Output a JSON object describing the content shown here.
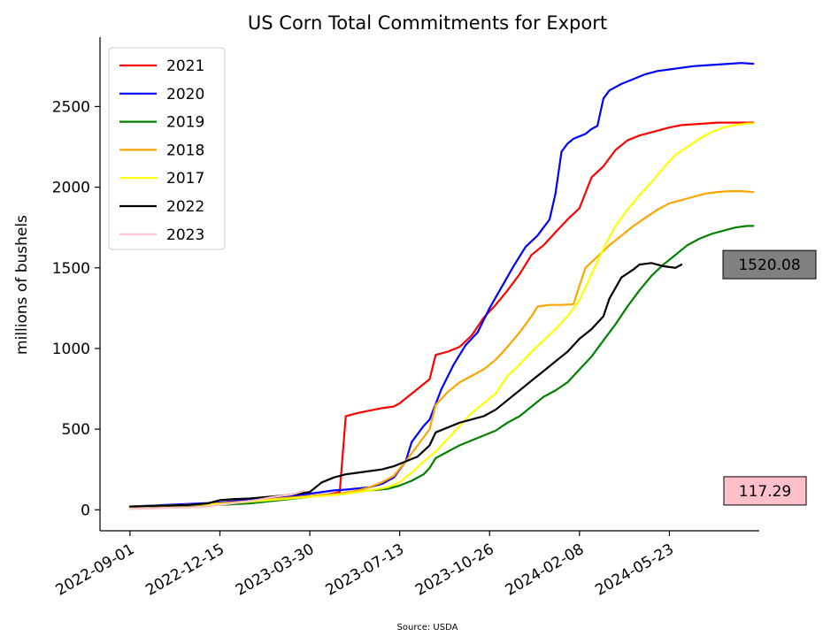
{
  "chart_data": {
    "type": "line",
    "title": "US Corn Total Commitments for Export",
    "xlabel": "",
    "ylabel": "millions of bushels",
    "source": "Source: USDA",
    "x_tick_labels": [
      "2022-09-01",
      "2022-12-15",
      "2023-03-30",
      "2023-07-13",
      "2023-10-26",
      "2024-02-08",
      "2024-05-23"
    ],
    "x_tick_weeks": [
      0,
      15,
      30,
      45,
      60,
      75,
      90
    ],
    "xlim_weeks": [
      -5,
      105
    ],
    "ylim": [
      -130,
      2930
    ],
    "y_ticks": [
      0,
      500,
      1000,
      1500,
      2000,
      2500
    ],
    "grid": false,
    "legend_position": "top-left",
    "series": [
      {
        "name": "2021",
        "color": "#ff0000",
        "points": [
          [
            0,
            20
          ],
          [
            10,
            25
          ],
          [
            15,
            35
          ],
          [
            20,
            55
          ],
          [
            25,
            75
          ],
          [
            30,
            85
          ],
          [
            33,
            95
          ],
          [
            35,
            110
          ],
          [
            36,
            580
          ],
          [
            37,
            590
          ],
          [
            38,
            600
          ],
          [
            40,
            615
          ],
          [
            42,
            630
          ],
          [
            44,
            640
          ],
          [
            45,
            660
          ],
          [
            47,
            720
          ],
          [
            49,
            780
          ],
          [
            50,
            810
          ],
          [
            51,
            960
          ],
          [
            53,
            980
          ],
          [
            55,
            1010
          ],
          [
            57,
            1080
          ],
          [
            59,
            1190
          ],
          [
            61,
            1270
          ],
          [
            63,
            1360
          ],
          [
            65,
            1460
          ],
          [
            67,
            1580
          ],
          [
            69,
            1640
          ],
          [
            71,
            1720
          ],
          [
            73,
            1800
          ],
          [
            75,
            1870
          ],
          [
            77,
            2060
          ],
          [
            79,
            2130
          ],
          [
            81,
            2230
          ],
          [
            83,
            2290
          ],
          [
            85,
            2320
          ],
          [
            87,
            2340
          ],
          [
            89,
            2360
          ],
          [
            90,
            2370
          ],
          [
            92,
            2385
          ],
          [
            94,
            2390
          ],
          [
            96,
            2395
          ],
          [
            98,
            2400
          ],
          [
            103,
            2400
          ],
          [
            104,
            2400
          ]
        ]
      },
      {
        "name": "2020",
        "color": "#0000ff",
        "points": [
          [
            0,
            20
          ],
          [
            15,
            45
          ],
          [
            25,
            80
          ],
          [
            30,
            100
          ],
          [
            34,
            120
          ],
          [
            36,
            125
          ],
          [
            40,
            140
          ],
          [
            42,
            160
          ],
          [
            44,
            200
          ],
          [
            46,
            300
          ],
          [
            47,
            420
          ],
          [
            49,
            520
          ],
          [
            50,
            560
          ],
          [
            52,
            750
          ],
          [
            54,
            900
          ],
          [
            56,
            1020
          ],
          [
            58,
            1100
          ],
          [
            60,
            1250
          ],
          [
            62,
            1380
          ],
          [
            64,
            1510
          ],
          [
            66,
            1630
          ],
          [
            68,
            1700
          ],
          [
            70,
            1800
          ],
          [
            71,
            1960
          ],
          [
            72,
            2220
          ],
          [
            73,
            2270
          ],
          [
            74,
            2300
          ],
          [
            76,
            2330
          ],
          [
            77,
            2360
          ],
          [
            78,
            2380
          ],
          [
            79,
            2550
          ],
          [
            80,
            2600
          ],
          [
            82,
            2640
          ],
          [
            84,
            2670
          ],
          [
            86,
            2700
          ],
          [
            88,
            2720
          ],
          [
            90,
            2730
          ],
          [
            92,
            2740
          ],
          [
            94,
            2750
          ],
          [
            96,
            2755
          ],
          [
            98,
            2760
          ],
          [
            100,
            2765
          ],
          [
            102,
            2770
          ],
          [
            104,
            2765
          ]
        ]
      },
      {
        "name": "2019",
        "color": "#008000",
        "points": [
          [
            0,
            20
          ],
          [
            10,
            25
          ],
          [
            15,
            30
          ],
          [
            20,
            40
          ],
          [
            25,
            60
          ],
          [
            30,
            80
          ],
          [
            35,
            100
          ],
          [
            40,
            120
          ],
          [
            43,
            130
          ],
          [
            45,
            150
          ],
          [
            47,
            180
          ],
          [
            49,
            220
          ],
          [
            50,
            260
          ],
          [
            51,
            320
          ],
          [
            53,
            360
          ],
          [
            55,
            400
          ],
          [
            57,
            430
          ],
          [
            59,
            460
          ],
          [
            61,
            490
          ],
          [
            63,
            540
          ],
          [
            65,
            580
          ],
          [
            67,
            640
          ],
          [
            69,
            700
          ],
          [
            71,
            740
          ],
          [
            73,
            790
          ],
          [
            75,
            870
          ],
          [
            77,
            950
          ],
          [
            79,
            1050
          ],
          [
            81,
            1150
          ],
          [
            83,
            1260
          ],
          [
            85,
            1360
          ],
          [
            87,
            1450
          ],
          [
            89,
            1520
          ],
          [
            91,
            1580
          ],
          [
            93,
            1640
          ],
          [
            95,
            1680
          ],
          [
            97,
            1710
          ],
          [
            99,
            1730
          ],
          [
            101,
            1750
          ],
          [
            103,
            1760
          ],
          [
            104,
            1760
          ]
        ]
      },
      {
        "name": "2018",
        "color": "#ffa500",
        "points": [
          [
            0,
            20
          ],
          [
            10,
            30
          ],
          [
            15,
            40
          ],
          [
            20,
            55
          ],
          [
            25,
            70
          ],
          [
            30,
            85
          ],
          [
            35,
            100
          ],
          [
            38,
            120
          ],
          [
            40,
            140
          ],
          [
            42,
            170
          ],
          [
            44,
            210
          ],
          [
            46,
            300
          ],
          [
            48,
            400
          ],
          [
            50,
            500
          ],
          [
            51,
            650
          ],
          [
            53,
            730
          ],
          [
            55,
            790
          ],
          [
            57,
            830
          ],
          [
            59,
            870
          ],
          [
            61,
            930
          ],
          [
            63,
            1010
          ],
          [
            65,
            1100
          ],
          [
            67,
            1200
          ],
          [
            68,
            1260
          ],
          [
            70,
            1270
          ],
          [
            72,
            1270
          ],
          [
            74,
            1275
          ],
          [
            75,
            1390
          ],
          [
            76,
            1500
          ],
          [
            78,
            1570
          ],
          [
            80,
            1640
          ],
          [
            82,
            1700
          ],
          [
            84,
            1760
          ],
          [
            86,
            1810
          ],
          [
            88,
            1860
          ],
          [
            90,
            1900
          ],
          [
            92,
            1920
          ],
          [
            94,
            1940
          ],
          [
            96,
            1960
          ],
          [
            98,
            1970
          ],
          [
            100,
            1975
          ],
          [
            102,
            1975
          ],
          [
            104,
            1970
          ]
        ]
      },
      {
        "name": "2017",
        "color": "#ffff00",
        "points": [
          [
            0,
            20
          ],
          [
            10,
            30
          ],
          [
            15,
            35
          ],
          [
            20,
            50
          ],
          [
            25,
            65
          ],
          [
            30,
            80
          ],
          [
            35,
            95
          ],
          [
            40,
            120
          ],
          [
            43,
            140
          ],
          [
            45,
            170
          ],
          [
            47,
            230
          ],
          [
            49,
            300
          ],
          [
            51,
            360
          ],
          [
            53,
            440
          ],
          [
            55,
            520
          ],
          [
            57,
            600
          ],
          [
            59,
            660
          ],
          [
            61,
            720
          ],
          [
            63,
            830
          ],
          [
            65,
            900
          ],
          [
            67,
            980
          ],
          [
            69,
            1050
          ],
          [
            71,
            1120
          ],
          [
            73,
            1200
          ],
          [
            75,
            1300
          ],
          [
            77,
            1460
          ],
          [
            79,
            1620
          ],
          [
            81,
            1760
          ],
          [
            83,
            1860
          ],
          [
            85,
            1950
          ],
          [
            87,
            2030
          ],
          [
            89,
            2120
          ],
          [
            91,
            2200
          ],
          [
            93,
            2250
          ],
          [
            95,
            2300
          ],
          [
            97,
            2340
          ],
          [
            99,
            2370
          ],
          [
            101,
            2385
          ],
          [
            103,
            2395
          ],
          [
            104,
            2395
          ]
        ]
      },
      {
        "name": "2022",
        "color": "#000000",
        "points": [
          [
            0,
            20
          ],
          [
            5,
            25
          ],
          [
            10,
            30
          ],
          [
            13,
            40
          ],
          [
            15,
            60
          ],
          [
            17,
            65
          ],
          [
            20,
            70
          ],
          [
            23,
            80
          ],
          [
            26,
            90
          ],
          [
            28,
            100
          ],
          [
            30,
            110
          ],
          [
            32,
            170
          ],
          [
            34,
            200
          ],
          [
            36,
            220
          ],
          [
            38,
            230
          ],
          [
            40,
            240
          ],
          [
            42,
            250
          ],
          [
            44,
            270
          ],
          [
            46,
            300
          ],
          [
            48,
            330
          ],
          [
            50,
            400
          ],
          [
            51,
            480
          ],
          [
            53,
            510
          ],
          [
            55,
            540
          ],
          [
            57,
            560
          ],
          [
            59,
            580
          ],
          [
            61,
            620
          ],
          [
            63,
            680
          ],
          [
            65,
            740
          ],
          [
            67,
            800
          ],
          [
            69,
            860
          ],
          [
            71,
            920
          ],
          [
            73,
            980
          ],
          [
            75,
            1060
          ],
          [
            77,
            1120
          ],
          [
            79,
            1200
          ],
          [
            80,
            1310
          ],
          [
            82,
            1440
          ],
          [
            84,
            1490
          ],
          [
            85,
            1520
          ],
          [
            87,
            1530
          ],
          [
            89,
            1510
          ],
          [
            91,
            1500
          ],
          [
            92,
            1520
          ]
        ]
      },
      {
        "name": "2023",
        "color": "#ffc0cb",
        "points": [
          [
            0,
            5
          ],
          [
            3,
            8
          ],
          [
            6,
            12
          ],
          [
            9,
            14
          ],
          [
            12,
            18
          ],
          [
            15,
            30
          ],
          [
            18,
            45
          ],
          [
            21,
            60
          ],
          [
            24,
            80
          ],
          [
            27,
            95
          ],
          [
            28,
            105
          ],
          [
            29,
            117.29
          ]
        ]
      }
    ],
    "annotations": [
      {
        "label": "1520.08",
        "value": 1520.08,
        "box_color": "#808080"
      },
      {
        "label": "117.29",
        "value": 117.29,
        "box_color": "#ffc0cb"
      }
    ]
  }
}
